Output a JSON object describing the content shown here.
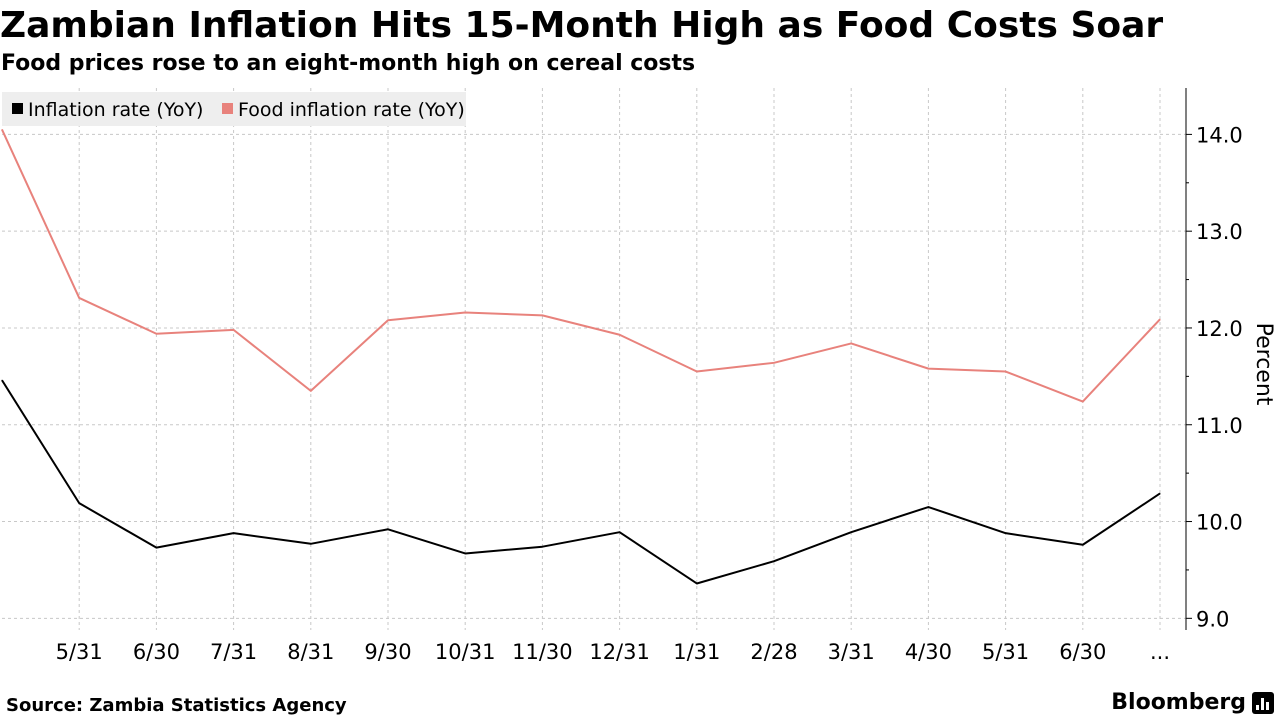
{
  "header": {
    "title": "Zambian Inflation Hits 15-Month High as Food Costs Soar",
    "subtitle": "Food prices rose to an eight-month high on cereal costs"
  },
  "footer": {
    "source": "Source: Zambia Statistics Agency",
    "brand": "Bloomberg"
  },
  "colors": {
    "inflation": "#000000",
    "food_inflation": "#e8827c",
    "grid": "#c8c8c8",
    "legend_bg": "#eeeeee"
  },
  "chart_data": {
    "type": "line",
    "title": "Zambian Inflation Hits 15-Month High as Food Costs Soar",
    "subtitle": "Food prices rose to an eight-month high on cereal costs",
    "xlabel": "",
    "ylabel": "Percent",
    "x": [
      "",
      "5/31",
      "6/30",
      "7/31",
      "8/31",
      "9/30",
      "10/31",
      "11/30",
      "12/31",
      "1/31",
      "2/28",
      "3/31",
      "4/30",
      "5/31",
      "6/30",
      "..."
    ],
    "ylim": [
      8.9,
      14.5
    ],
    "yticks": [
      9.0,
      10.0,
      11.0,
      12.0,
      13.0,
      14.0
    ],
    "ytick_labels": [
      "9.0",
      "10.0",
      "11.0",
      "12.0",
      "13.0",
      "14.0"
    ],
    "grid": true,
    "legend_position": "top-left",
    "y_axis_position": "right",
    "series": [
      {
        "name": "Inflation rate (YoY)",
        "color": "#000000",
        "values": [
          11.46,
          10.19,
          9.73,
          9.88,
          9.77,
          9.92,
          9.67,
          9.74,
          9.89,
          9.36,
          9.59,
          9.89,
          10.15,
          9.88,
          9.76,
          10.29
        ]
      },
      {
        "name": "Food inflation rate (YoY)",
        "color": "#e8827c",
        "values": [
          14.05,
          12.31,
          11.94,
          11.98,
          11.35,
          12.08,
          12.16,
          12.13,
          11.93,
          11.55,
          11.64,
          11.84,
          11.58,
          11.55,
          11.24,
          12.09
        ]
      }
    ]
  }
}
